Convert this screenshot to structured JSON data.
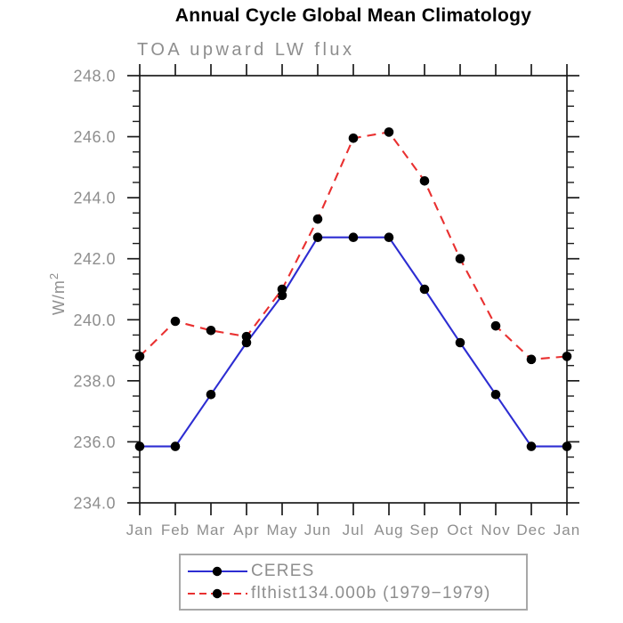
{
  "page": {
    "background": "#ffffff"
  },
  "chart_data": {
    "type": "line",
    "title": "Annual Cycle Global Mean Climatology",
    "subtitle": "TOA upward LW flux",
    "ylabel": "W/m²",
    "xlabel": "",
    "x_tick_labels": [
      "Jan",
      "Feb",
      "Mar",
      "Apr",
      "May",
      "Jun",
      "Jul",
      "Aug",
      "Sep",
      "Oct",
      "Nov",
      "Dec",
      "Jan"
    ],
    "ylim": [
      234.0,
      248.0
    ],
    "y_major_step": 2.0,
    "y_minor_step": 0.5,
    "grid": false,
    "legend_position": "bottom-center",
    "axis_color": "#1c1c1c",
    "label_color": "#8e8e8e",
    "series": [
      {
        "name": "CERES",
        "line_color": "#2d2dd2",
        "line_style": "solid",
        "marker": "filled-circle",
        "marker_color": "#000000",
        "values": [
          235.85,
          235.85,
          237.55,
          239.25,
          240.8,
          242.7,
          242.7,
          242.7,
          241.0,
          239.25,
          237.55,
          235.85,
          235.85
        ]
      },
      {
        "name": "flthist134.000b (1979−1979)",
        "line_color": "#e93030",
        "line_style": "dashed",
        "marker": "filled-circle",
        "marker_color": "#000000",
        "values": [
          238.8,
          239.95,
          239.65,
          239.45,
          241.0,
          243.3,
          245.95,
          246.15,
          244.55,
          242.0,
          239.8,
          238.7,
          238.8
        ]
      }
    ]
  }
}
